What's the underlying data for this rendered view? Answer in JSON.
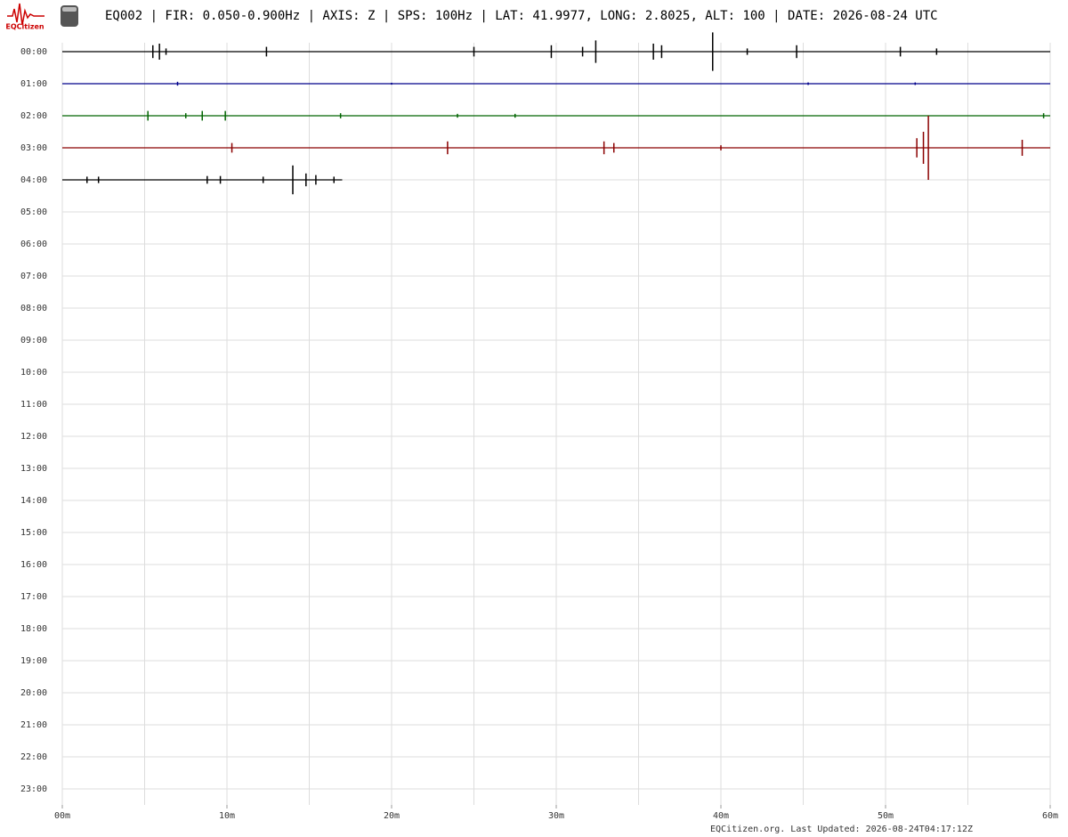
{
  "chart_data": {
    "type": "helicorder",
    "title": "EQ002 | FIR: 0.050-0.900Hz | AXIS: Z | SPS: 100Hz | LAT: 41.9977, LONG: 2.8025, ALT: 100 | DATE: 2026-08-24 UTC",
    "logo_text": "EQCitizen",
    "footer": "EQCitizen.org. Last Updated: 2026-08-24T04:17:12Z",
    "rows": [
      "00:00",
      "01:00",
      "02:00",
      "03:00",
      "04:00",
      "05:00",
      "06:00",
      "07:00",
      "08:00",
      "09:00",
      "10:00",
      "11:00",
      "12:00",
      "13:00",
      "14:00",
      "15:00",
      "16:00",
      "17:00",
      "18:00",
      "19:00",
      "20:00",
      "21:00",
      "22:00",
      "23:00"
    ],
    "xlim": [
      0,
      60
    ],
    "xticks": [
      {
        "value": 0,
        "label": "00m"
      },
      {
        "value": 10,
        "label": "10m"
      },
      {
        "value": 20,
        "label": "20m"
      },
      {
        "value": 30,
        "label": "30m"
      },
      {
        "value": 40,
        "label": "40m"
      },
      {
        "value": 50,
        "label": "50m"
      },
      {
        "value": 60,
        "label": "60m"
      }
    ],
    "xminor": [
      5,
      15,
      25,
      35,
      45,
      55
    ],
    "traces": [
      {
        "row": 0,
        "color": "#000000",
        "start": 0,
        "end": 60,
        "events": [
          [
            5.5,
            0.2
          ],
          [
            5.9,
            0.25
          ],
          [
            6.3,
            0.1
          ],
          [
            12.4,
            0.15
          ],
          [
            25,
            0.15
          ],
          [
            29.7,
            0.2
          ],
          [
            31.6,
            0.15
          ],
          [
            32.4,
            0.35
          ],
          [
            35.9,
            0.25
          ],
          [
            36.4,
            0.2
          ],
          [
            39.5,
            0.6
          ],
          [
            41.6,
            0.1
          ],
          [
            44.6,
            0.2
          ],
          [
            50.9,
            0.15
          ],
          [
            53.1,
            0.1
          ]
        ]
      },
      {
        "row": 1,
        "color": "#00008b",
        "start": 0,
        "end": 60,
        "events": [
          [
            7.0,
            0.06
          ],
          [
            20,
            0.03
          ],
          [
            45.3,
            0.04
          ],
          [
            51.8,
            0.04
          ]
        ]
      },
      {
        "row": 2,
        "color": "#006400",
        "start": 0,
        "end": 60,
        "events": [
          [
            5.2,
            0.15
          ],
          [
            7.5,
            0.08
          ],
          [
            8.5,
            0.15
          ],
          [
            9.9,
            0.15
          ],
          [
            16.9,
            0.08
          ],
          [
            24,
            0.06
          ],
          [
            27.5,
            0.06
          ],
          [
            59.6,
            0.08
          ]
        ]
      },
      {
        "row": 3,
        "color": "#8b0000",
        "start": 0,
        "end": 60,
        "events": [
          [
            10.3,
            0.15
          ],
          [
            23.4,
            0.2
          ],
          [
            32.9,
            0.2
          ],
          [
            33.5,
            0.15
          ],
          [
            40,
            0.08
          ],
          [
            51.9,
            0.3
          ],
          [
            52.3,
            0.5
          ],
          [
            52.6,
            1.0
          ],
          [
            58.3,
            0.25
          ]
        ]
      },
      {
        "row": 4,
        "color": "#000000",
        "start": 0,
        "end": 17.0,
        "events": [
          [
            1.5,
            0.1
          ],
          [
            2.2,
            0.1
          ],
          [
            8.8,
            0.12
          ],
          [
            9.6,
            0.12
          ],
          [
            12.2,
            0.1
          ],
          [
            14.0,
            0.45
          ],
          [
            14.8,
            0.2
          ],
          [
            15.4,
            0.15
          ],
          [
            16.5,
            0.1
          ]
        ]
      }
    ]
  }
}
